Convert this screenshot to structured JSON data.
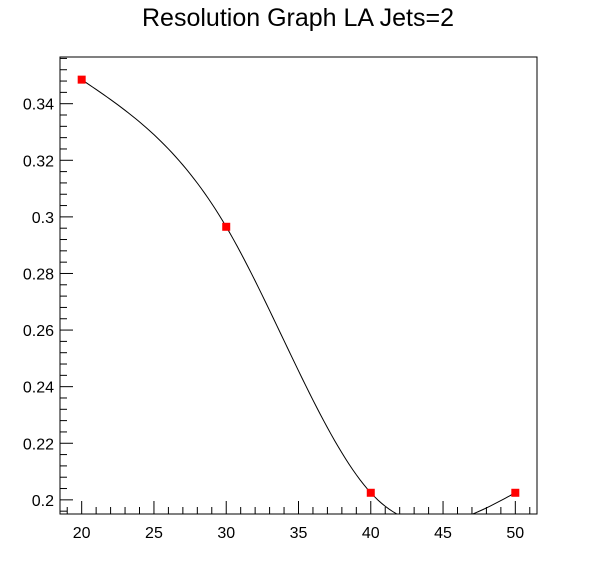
{
  "chart_data": {
    "type": "scatter",
    "title": "Resolution Graph LA Jets=2",
    "xlabel": "",
    "ylabel": "",
    "xlim": [
      18.5,
      51.5
    ],
    "ylim": [
      0.195,
      0.3565
    ],
    "x_ticks": [
      20,
      25,
      30,
      35,
      40,
      45,
      50
    ],
    "y_ticks": [
      0.2,
      0.22,
      0.24,
      0.26,
      0.28,
      0.3,
      0.32,
      0.34
    ],
    "grid": false,
    "legend": "none",
    "series": [
      {
        "x": [
          20,
          30,
          40,
          50
        ],
        "y": [
          0.3485,
          0.2965,
          0.2025,
          0.2025
        ],
        "marker": "square",
        "marker_color": "#ff0000",
        "line": "smooth-spline",
        "line_color": "#000000"
      }
    ]
  }
}
